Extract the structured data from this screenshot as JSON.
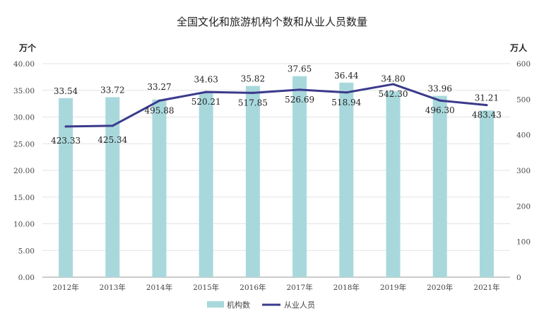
{
  "chart_data": {
    "type": "bar",
    "title": "全国文化和旅游机构个数和从业人员数量",
    "y_left_unit": "万个",
    "y_right_unit": "万人",
    "categories": [
      "2012年",
      "2013年",
      "2014年",
      "2015年",
      "2016年",
      "2017年",
      "2018年",
      "2019年",
      "2020年",
      "2021年"
    ],
    "y_left_ticks": [
      "0.00",
      "5.00",
      "10.00",
      "15.00",
      "20.00",
      "25.00",
      "30.00",
      "35.00",
      "40.00"
    ],
    "y_right_ticks": [
      "0",
      "100",
      "200",
      "300",
      "400",
      "500",
      "600"
    ],
    "ylim_left": [
      0,
      40
    ],
    "ylim_right": [
      0,
      600
    ],
    "grid": true,
    "legend_position": "bottom-center",
    "series": [
      {
        "name": "机构数",
        "type": "bar",
        "axis": "left",
        "color": "#a8d8dc",
        "values": [
          33.54,
          33.72,
          33.27,
          34.63,
          35.82,
          37.65,
          36.44,
          34.8,
          33.96,
          31.21
        ],
        "labels": [
          "33.54",
          "33.72",
          "33.27",
          "34.63",
          "35.82",
          "37.65",
          "36.44",
          "34.80",
          "33.96",
          "31.21"
        ]
      },
      {
        "name": "从业人员",
        "type": "line",
        "axis": "right",
        "color": "#3b3a8c",
        "values": [
          423.33,
          425.34,
          495.88,
          520.21,
          517.85,
          526.69,
          518.94,
          542.3,
          496.3,
          483.43
        ],
        "labels": [
          "423.33",
          "425.34",
          "495.88",
          "520.21",
          "517.85",
          "526.69",
          "518.94",
          "542.30",
          "496.30",
          "483.43"
        ]
      }
    ]
  }
}
